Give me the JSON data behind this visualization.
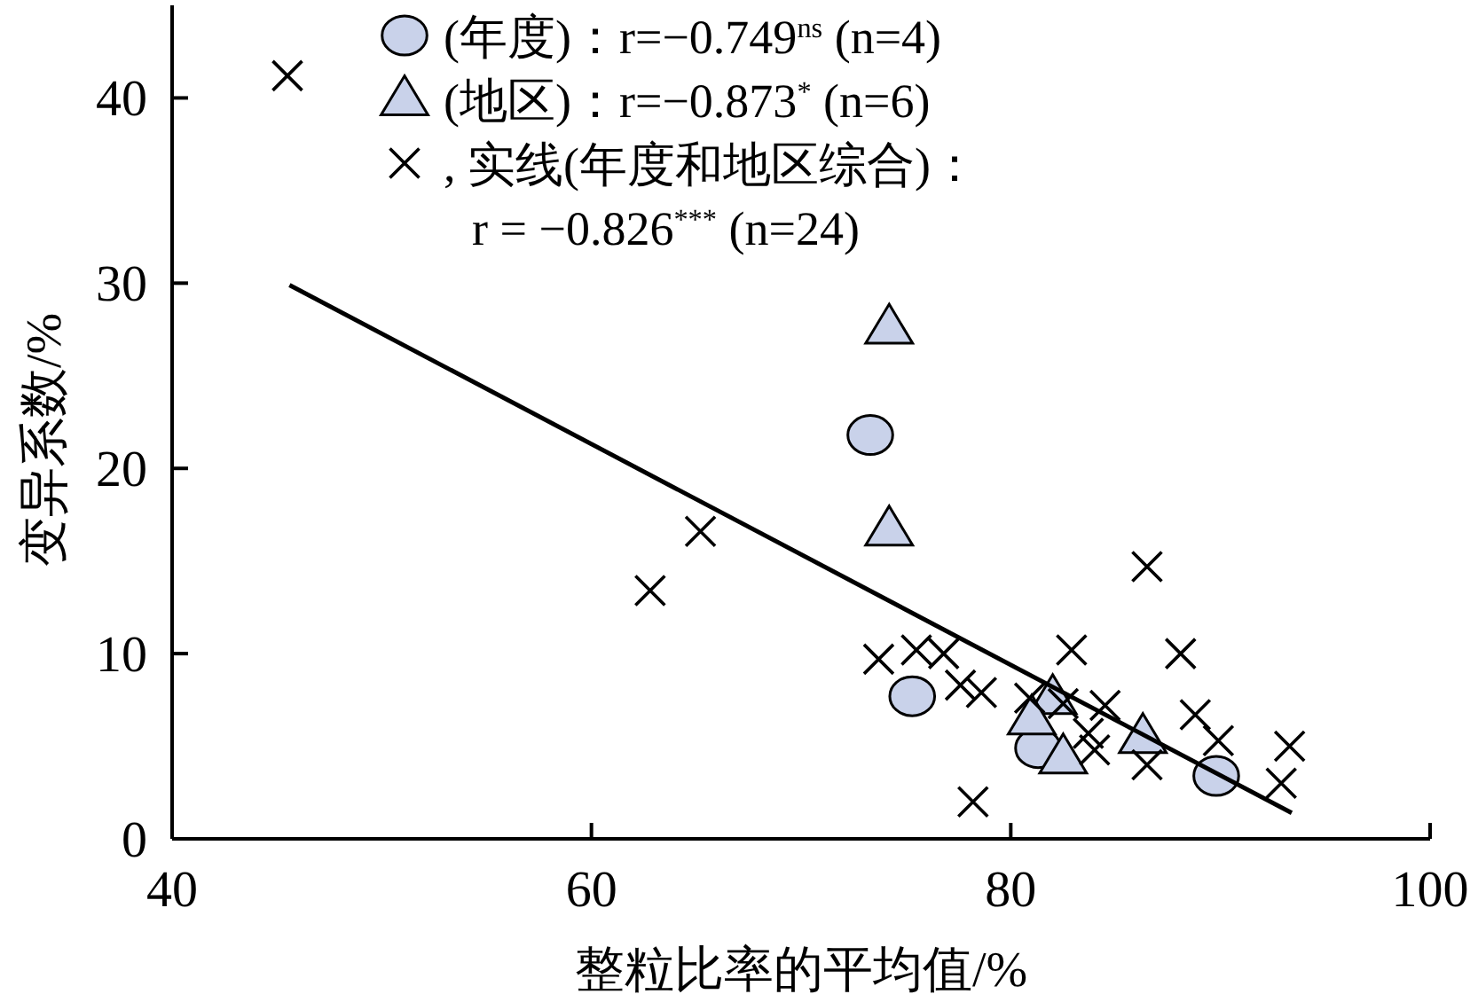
{
  "chart_data": {
    "type": "scatter",
    "xlabel": "整粒比率的平均值/%",
    "ylabel": "变异系数/%",
    "xlim": [
      40,
      100
    ],
    "xticks": [
      40,
      60,
      80,
      100
    ],
    "ylim": [
      0,
      45
    ],
    "yticks": [
      0,
      10,
      20,
      30,
      40
    ],
    "grid": false,
    "legend": "top",
    "series": [
      {
        "name": "(年度)：r=−0.749$^{ns}$ (n=4)",
        "color": "#c9d2ea",
        "marker": "circle",
        "x": [
          73.3,
          75.3,
          81.3,
          89.8
        ],
        "values": [
          21.8,
          7.7,
          4.9,
          3.4
        ]
      },
      {
        "name": "(地区)：r=−0.873$^{*}$ (n=6)",
        "color": "#c9d2ea",
        "marker": "triangle",
        "x": [
          74.2,
          74.2,
          82.0,
          81.0,
          82.5,
          86.3
        ],
        "values": [
          27.6,
          16.7,
          7.6,
          6.5,
          4.4,
          5.5
        ]
      },
      {
        "name": ", 实线(年度和地区综合)：\nr = −0.826$^{***}$ (n=24)",
        "color": "#000000",
        "marker": "cross",
        "x": [
          45.5,
          62.8,
          65.2,
          73.7,
          75.5,
          76.8,
          77.6,
          78.6,
          78.2,
          80.9,
          82.9,
          82.5,
          83.7,
          84.0,
          84.5,
          86.5,
          86.5,
          88.1,
          88.8,
          89.9,
          92.9,
          93.3
        ],
        "values": [
          41.2,
          13.4,
          16.6,
          9.7,
          10.2,
          10.0,
          8.3,
          7.9,
          2.0,
          7.6,
          10.2,
          7.3,
          5.7,
          4.8,
          7.2,
          14.7,
          4.0,
          10.0,
          6.7,
          5.3,
          3.0,
          5.0
        ]
      },
      {
        "type": "line",
        "color": "#000000",
        "line_style": "solid",
        "x": [
          45.6,
          93.4
        ],
        "values": [
          29.9,
          1.4
        ]
      }
    ]
  }
}
